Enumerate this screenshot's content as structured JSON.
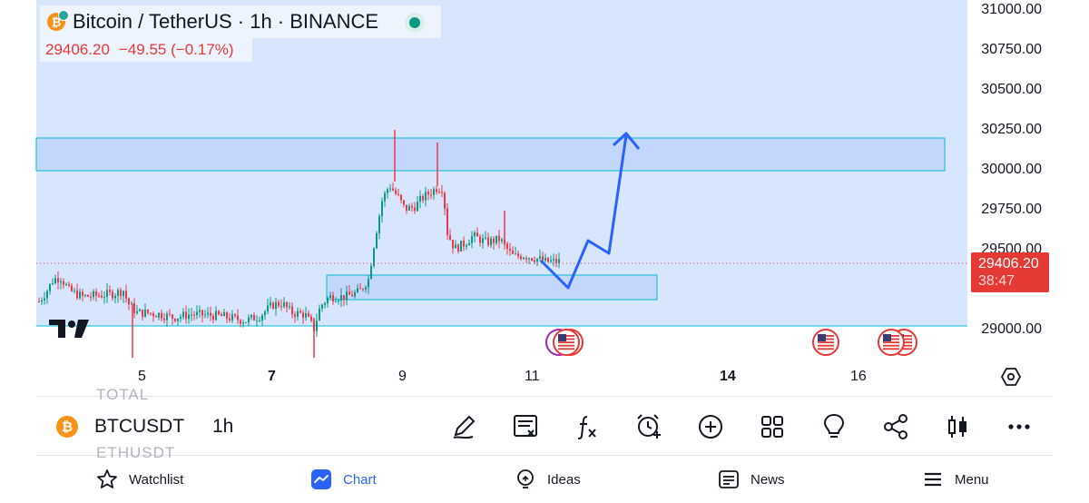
{
  "header": {
    "symbol_title": "Bitcoin / TetherUS · 1h · BINANCE",
    "last_price": "29406.20",
    "change": "−49.55 (−0.17%)"
  },
  "price_axis": {
    "labels": [
      "31000.00",
      "30750.00",
      "30500.00",
      "30250.00",
      "30000.00",
      "29750.00",
      "29500.00",
      "29000.00"
    ],
    "current_price": "29406.20",
    "countdown": "38:47"
  },
  "time_axis": {
    "labels": [
      "5",
      "7",
      "9",
      "11",
      "14",
      "16"
    ],
    "bold": [
      "7",
      "14"
    ]
  },
  "toolbar": {
    "symbol": "BTCUSDT",
    "interval": "1h",
    "prev_symbol": "TOTAL",
    "next_symbol": "ETHUSDT",
    "coin_letter": "₿",
    "tools": [
      "drawing-pen-icon",
      "object-tree-icon",
      "indicators-icon",
      "alert-icon",
      "add-icon",
      "layouts-icon",
      "ideas-bulb-icon",
      "share-icon",
      "candles-icon",
      "more-icon"
    ]
  },
  "nav": {
    "watchlist": "Watchlist",
    "chart": "Chart",
    "ideas": "Ideas",
    "news": "News",
    "menu": "Menu"
  },
  "colors": {
    "up": "#089981",
    "down": "#f23645",
    "zone_fill": "#c3d6fb",
    "zone_border": "#00bcd4",
    "arrow": "#2962ff",
    "accent": "#2962ff"
  }
}
